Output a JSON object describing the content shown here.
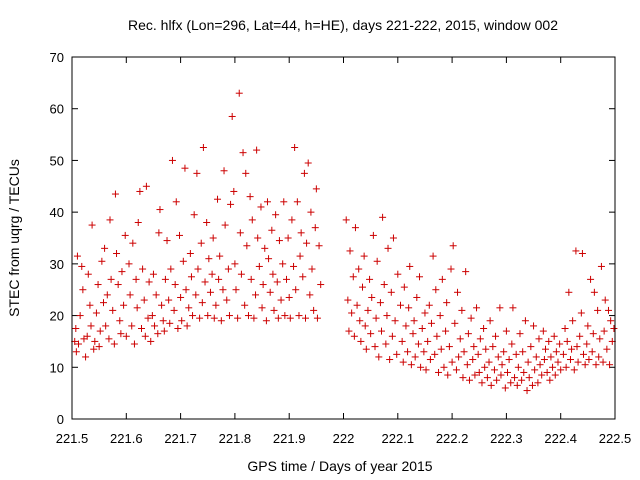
{
  "chart_data": {
    "type": "scatter",
    "title": "Rec. hlfx (Lon=296, Lat=44, h=HE), days 221-222, 2015, window 002",
    "xlabel": "GPS time / Days of year 2015",
    "ylabel": "STEC from uqrg / TECUs",
    "xlim": [
      221.5,
      222.5
    ],
    "ylim": [
      0,
      70
    ],
    "xticks": [
      "221.5",
      "221.6",
      "221.7",
      "221.8",
      "221.9",
      "222",
      "222.1",
      "222.2",
      "222.3",
      "222.4",
      "222.5"
    ],
    "yticks": [
      "0",
      "10",
      "20",
      "30",
      "40",
      "50",
      "60",
      "70"
    ],
    "marker": "+",
    "color": "#cc0000",
    "grid": false,
    "points": [
      [
        221.505,
        15
      ],
      [
        221.507,
        17.5
      ],
      [
        221.508,
        13
      ],
      [
        221.51,
        31.5
      ],
      [
        221.512,
        14.5
      ],
      [
        221.515,
        20
      ],
      [
        221.518,
        29.5
      ],
      [
        221.52,
        25
      ],
      [
        221.522,
        15.5
      ],
      [
        221.525,
        12
      ],
      [
        221.528,
        16
      ],
      [
        221.53,
        28
      ],
      [
        221.533,
        22
      ],
      [
        221.535,
        18
      ],
      [
        221.537,
        37.5
      ],
      [
        221.54,
        13.5
      ],
      [
        221.542,
        15
      ],
      [
        221.545,
        20.5
      ],
      [
        221.548,
        26
      ],
      [
        221.55,
        14
      ],
      [
        221.552,
        17
      ],
      [
        221.555,
        30.5
      ],
      [
        221.558,
        22.5
      ],
      [
        221.56,
        33
      ],
      [
        221.562,
        18
      ],
      [
        221.565,
        24
      ],
      [
        221.568,
        15.5
      ],
      [
        221.57,
        38.5
      ],
      [
        221.572,
        27
      ],
      [
        221.575,
        21
      ],
      [
        221.578,
        14.5
      ],
      [
        221.58,
        43.5
      ],
      [
        221.582,
        32
      ],
      [
        221.585,
        26
      ],
      [
        221.588,
        19
      ],
      [
        221.59,
        16.5
      ],
      [
        221.592,
        28.5
      ],
      [
        221.595,
        22
      ],
      [
        221.598,
        35.5
      ],
      [
        221.6,
        16
      ],
      [
        221.605,
        30
      ],
      [
        221.607,
        24
      ],
      [
        221.61,
        18
      ],
      [
        221.612,
        34
      ],
      [
        221.615,
        14.5
      ],
      [
        221.618,
        27
      ],
      [
        221.62,
        21.5
      ],
      [
        221.622,
        38
      ],
      [
        221.625,
        44
      ],
      [
        221.628,
        17.5
      ],
      [
        221.63,
        29
      ],
      [
        221.633,
        23
      ],
      [
        221.635,
        16
      ],
      [
        221.637,
        45
      ],
      [
        221.64,
        19.5
      ],
      [
        221.642,
        26.5
      ],
      [
        221.645,
        15
      ],
      [
        221.648,
        20
      ],
      [
        221.65,
        28
      ],
      [
        221.652,
        18
      ],
      [
        221.655,
        24
      ],
      [
        221.658,
        16.5
      ],
      [
        221.66,
        36
      ],
      [
        221.662,
        40.5
      ],
      [
        221.665,
        22
      ],
      [
        221.668,
        19
      ],
      [
        221.67,
        17
      ],
      [
        221.672,
        27
      ],
      [
        221.675,
        34.5
      ],
      [
        221.678,
        23
      ],
      [
        221.68,
        18.5
      ],
      [
        221.682,
        29
      ],
      [
        221.685,
        50
      ],
      [
        221.688,
        21
      ],
      [
        221.69,
        26
      ],
      [
        221.692,
        42
      ],
      [
        221.695,
        17.5
      ],
      [
        221.698,
        35.5
      ],
      [
        221.7,
        23.5
      ],
      [
        221.702,
        19
      ],
      [
        221.705,
        30.5
      ],
      [
        221.708,
        48.5
      ],
      [
        221.71,
        25
      ],
      [
        221.712,
        18
      ],
      [
        221.715,
        21.5
      ],
      [
        221.718,
        32
      ],
      [
        221.72,
        27.5
      ],
      [
        221.722,
        20
      ],
      [
        221.725,
        39.5
      ],
      [
        221.728,
        24
      ],
      [
        221.73,
        47.5
      ],
      [
        221.732,
        29
      ],
      [
        221.735,
        19.5
      ],
      [
        221.738,
        34
      ],
      [
        221.74,
        22.5
      ],
      [
        221.742,
        52.5
      ],
      [
        221.745,
        26.5
      ],
      [
        221.748,
        38
      ],
      [
        221.75,
        20
      ],
      [
        221.752,
        31
      ],
      [
        221.755,
        24.5
      ],
      [
        221.758,
        28
      ],
      [
        221.76,
        35
      ],
      [
        221.762,
        19.5
      ],
      [
        221.765,
        22
      ],
      [
        221.768,
        42.5
      ],
      [
        221.77,
        27
      ],
      [
        221.772,
        31.5
      ],
      [
        221.775,
        19
      ],
      [
        221.778,
        25
      ],
      [
        221.78,
        48
      ],
      [
        221.782,
        37.5
      ],
      [
        221.785,
        23
      ],
      [
        221.788,
        29
      ],
      [
        221.79,
        20
      ],
      [
        221.792,
        41.5
      ],
      [
        221.795,
        58.5
      ],
      [
        221.798,
        44
      ],
      [
        221.8,
        30
      ],
      [
        221.802,
        25
      ],
      [
        221.805,
        19.5
      ],
      [
        221.808,
        63
      ],
      [
        221.81,
        36
      ],
      [
        221.812,
        28
      ],
      [
        221.815,
        51.5
      ],
      [
        221.818,
        22
      ],
      [
        221.82,
        47.5
      ],
      [
        221.822,
        33.5
      ],
      [
        221.825,
        20
      ],
      [
        221.828,
        43
      ],
      [
        221.83,
        27
      ],
      [
        221.832,
        38.5
      ],
      [
        221.835,
        19.5
      ],
      [
        221.838,
        24
      ],
      [
        221.84,
        52
      ],
      [
        221.842,
        35
      ],
      [
        221.845,
        29.5
      ],
      [
        221.848,
        41
      ],
      [
        221.85,
        21.5
      ],
      [
        221.852,
        26
      ],
      [
        221.855,
        33
      ],
      [
        221.858,
        19
      ],
      [
        221.86,
        42
      ],
      [
        221.862,
        31
      ],
      [
        221.865,
        24.5
      ],
      [
        221.868,
        36.5
      ],
      [
        221.87,
        28
      ],
      [
        221.872,
        21
      ],
      [
        221.875,
        39.5
      ],
      [
        221.878,
        26.5
      ],
      [
        221.88,
        19.5
      ],
      [
        221.882,
        34.5
      ],
      [
        221.885,
        23
      ],
      [
        221.888,
        30
      ],
      [
        221.89,
        42
      ],
      [
        221.892,
        20
      ],
      [
        221.895,
        27
      ],
      [
        221.898,
        35
      ],
      [
        221.9,
        23.5
      ],
      [
        221.902,
        19.5
      ],
      [
        221.905,
        38.5
      ],
      [
        221.908,
        29.5
      ],
      [
        221.91,
        52.5
      ],
      [
        221.912,
        25
      ],
      [
        221.915,
        42
      ],
      [
        221.918,
        20
      ],
      [
        221.92,
        31.5
      ],
      [
        221.922,
        36
      ],
      [
        221.925,
        27.5
      ],
      [
        221.928,
        47.5
      ],
      [
        221.93,
        19.5
      ],
      [
        221.932,
        34
      ],
      [
        221.935,
        49.5
      ],
      [
        221.938,
        24
      ],
      [
        221.94,
        40
      ],
      [
        221.942,
        29
      ],
      [
        221.945,
        21
      ],
      [
        221.948,
        37
      ],
      [
        221.95,
        44.5
      ],
      [
        221.952,
        19.5
      ],
      [
        221.955,
        33.5
      ],
      [
        221.958,
        26
      ],
      [
        222.005,
        38.5
      ],
      [
        222.008,
        23
      ],
      [
        222.01,
        17
      ],
      [
        222.012,
        32.5
      ],
      [
        222.015,
        20.5
      ],
      [
        222.018,
        27.5
      ],
      [
        222.02,
        16
      ],
      [
        222.022,
        37
      ],
      [
        222.025,
        22
      ],
      [
        222.028,
        29
      ],
      [
        222.03,
        19
      ],
      [
        222.032,
        15
      ],
      [
        222.035,
        25.5
      ],
      [
        222.038,
        31.5
      ],
      [
        222.04,
        18
      ],
      [
        222.042,
        13.5
      ],
      [
        222.045,
        21
      ],
      [
        222.048,
        27
      ],
      [
        222.05,
        16.5
      ],
      [
        222.052,
        23.5
      ],
      [
        222.055,
        35.5
      ],
      [
        222.058,
        14
      ],
      [
        222.06,
        19.5
      ],
      [
        222.062,
        30.5
      ],
      [
        222.065,
        12
      ],
      [
        222.068,
        22.5
      ],
      [
        222.07,
        17
      ],
      [
        222.072,
        39
      ],
      [
        222.075,
        26
      ],
      [
        222.078,
        14.5
      ],
      [
        222.08,
        20
      ],
      [
        222.082,
        33
      ],
      [
        222.085,
        11.5
      ],
      [
        222.088,
        24.5
      ],
      [
        222.09,
        16
      ],
      [
        222.092,
        35
      ],
      [
        222.095,
        19
      ],
      [
        222.098,
        12.5
      ],
      [
        222.1,
        28
      ],
      [
        222.105,
        22
      ],
      [
        222.108,
        15
      ],
      [
        222.11,
        11
      ],
      [
        222.112,
        25.5
      ],
      [
        222.115,
        18
      ],
      [
        222.118,
        13
      ],
      [
        222.12,
        21.5
      ],
      [
        222.122,
        29.5
      ],
      [
        222.125,
        10.5
      ],
      [
        222.128,
        16.5
      ],
      [
        222.13,
        19
      ],
      [
        222.132,
        12
      ],
      [
        222.135,
        23.5
      ],
      [
        222.138,
        14.5
      ],
      [
        222.14,
        27.5
      ],
      [
        222.142,
        10
      ],
      [
        222.145,
        17.5
      ],
      [
        222.148,
        13
      ],
      [
        222.15,
        20.5
      ],
      [
        222.152,
        9.5
      ],
      [
        222.155,
        15
      ],
      [
        222.158,
        22
      ],
      [
        222.16,
        11.5
      ],
      [
        222.162,
        18.5
      ],
      [
        222.165,
        31.5
      ],
      [
        222.168,
        12.5
      ],
      [
        222.17,
        25
      ],
      [
        222.172,
        16
      ],
      [
        222.175,
        9
      ],
      [
        222.178,
        20
      ],
      [
        222.18,
        13.5
      ],
      [
        222.182,
        27
      ],
      [
        222.185,
        10
      ],
      [
        222.188,
        17
      ],
      [
        222.19,
        22.5
      ],
      [
        222.192,
        8.5
      ],
      [
        222.195,
        14
      ],
      [
        222.198,
        29
      ],
      [
        222.2,
        11
      ],
      [
        222.202,
        33.5
      ],
      [
        222.205,
        18.5
      ],
      [
        222.208,
        9.5
      ],
      [
        222.21,
        24.5
      ],
      [
        222.212,
        12
      ],
      [
        222.215,
        15.5
      ],
      [
        222.218,
        21
      ],
      [
        222.22,
        8
      ],
      [
        222.222,
        13
      ],
      [
        222.225,
        28.5
      ],
      [
        222.228,
        10.5
      ],
      [
        222.23,
        16.5
      ],
      [
        222.232,
        7.5
      ],
      [
        222.235,
        19.5
      ],
      [
        222.238,
        11.5
      ],
      [
        222.24,
        14
      ],
      [
        222.242,
        8.5
      ],
      [
        222.245,
        21.5
      ],
      [
        222.248,
        12.5
      ],
      [
        222.25,
        9
      ],
      [
        222.252,
        15.5
      ],
      [
        222.255,
        7
      ],
      [
        222.258,
        17.5
      ],
      [
        222.26,
        10
      ],
      [
        222.262,
        13.5
      ],
      [
        222.265,
        8
      ],
      [
        222.268,
        11
      ],
      [
        222.27,
        19
      ],
      [
        222.272,
        6.5
      ],
      [
        222.275,
        14
      ],
      [
        222.278,
        9.5
      ],
      [
        222.28,
        16
      ],
      [
        222.282,
        7.5
      ],
      [
        222.285,
        12
      ],
      [
        222.288,
        21.5
      ],
      [
        222.29,
        8.5
      ],
      [
        222.292,
        10.5
      ],
      [
        222.295,
        13
      ],
      [
        222.298,
        6
      ],
      [
        222.3,
        17
      ],
      [
        222.302,
        9
      ],
      [
        222.305,
        11.5
      ],
      [
        222.308,
        7
      ],
      [
        222.31,
        14.5
      ],
      [
        222.312,
        21.5
      ],
      [
        222.315,
        8
      ],
      [
        222.318,
        12.5
      ],
      [
        222.32,
        6.5
      ],
      [
        222.322,
        10
      ],
      [
        222.325,
        16.5
      ],
      [
        222.328,
        7.5
      ],
      [
        222.33,
        13
      ],
      [
        222.332,
        9
      ],
      [
        222.335,
        19
      ],
      [
        222.338,
        5.5
      ],
      [
        222.34,
        11
      ],
      [
        222.342,
        8
      ],
      [
        222.345,
        14
      ],
      [
        222.348,
        6.5
      ],
      [
        222.35,
        18
      ],
      [
        222.352,
        9.5
      ],
      [
        222.355,
        12
      ],
      [
        222.358,
        7
      ],
      [
        222.36,
        15.5
      ],
      [
        222.362,
        10.5
      ],
      [
        222.365,
        8.5
      ],
      [
        222.368,
        17
      ],
      [
        222.37,
        11.5
      ],
      [
        222.372,
        13.5
      ],
      [
        222.375,
        9
      ],
      [
        222.378,
        15
      ],
      [
        222.38,
        7.5
      ],
      [
        222.382,
        12
      ],
      [
        222.385,
        10
      ],
      [
        222.388,
        16
      ],
      [
        222.39,
        8.5
      ],
      [
        222.392,
        13
      ],
      [
        222.395,
        11
      ],
      [
        222.398,
        14.5
      ],
      [
        222.4,
        9.5
      ],
      [
        222.405,
        12.5
      ],
      [
        222.408,
        17.5
      ],
      [
        222.41,
        10
      ],
      [
        222.412,
        15
      ],
      [
        222.415,
        24.5
      ],
      [
        222.418,
        11.5
      ],
      [
        222.42,
        13.5
      ],
      [
        222.422,
        19
      ],
      [
        222.425,
        9.5
      ],
      [
        222.428,
        32.5
      ],
      [
        222.43,
        14
      ],
      [
        222.432,
        11
      ],
      [
        222.435,
        16
      ],
      [
        222.438,
        20.5
      ],
      [
        222.44,
        32
      ],
      [
        222.442,
        12.5
      ],
      [
        222.445,
        10.5
      ],
      [
        222.448,
        14.5
      ],
      [
        222.45,
        18
      ],
      [
        222.452,
        11.5
      ],
      [
        222.455,
        27
      ],
      [
        222.458,
        13
      ],
      [
        222.46,
        16.5
      ],
      [
        222.462,
        24.5
      ],
      [
        222.465,
        10.5
      ],
      [
        222.468,
        21
      ],
      [
        222.47,
        12
      ],
      [
        222.472,
        15.5
      ],
      [
        222.475,
        29.5
      ],
      [
        222.478,
        11
      ],
      [
        222.48,
        17
      ],
      [
        222.482,
        23
      ],
      [
        222.485,
        13.5
      ],
      [
        222.488,
        21
      ],
      [
        222.49,
        10.5
      ],
      [
        222.492,
        19
      ],
      [
        222.495,
        15
      ],
      [
        222.498,
        17.5
      ]
    ]
  }
}
